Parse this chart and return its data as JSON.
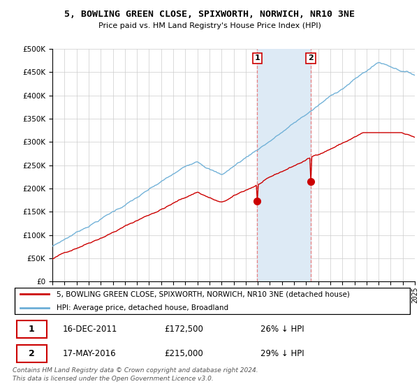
{
  "title1": "5, BOWLING GREEN CLOSE, SPIXWORTH, NORWICH, NR10 3NE",
  "title2": "Price paid vs. HM Land Registry's House Price Index (HPI)",
  "legend_line1": "5, BOWLING GREEN CLOSE, SPIXWORTH, NORWICH, NR10 3NE (detached house)",
  "legend_line2": "HPI: Average price, detached house, Broadland",
  "annotation1_date": "16-DEC-2011",
  "annotation1_price": "£172,500",
  "annotation1_hpi": "26% ↓ HPI",
  "annotation2_date": "17-MAY-2016",
  "annotation2_price": "£215,000",
  "annotation2_hpi": "29% ↓ HPI",
  "footer": "Contains HM Land Registry data © Crown copyright and database right 2024.\nThis data is licensed under the Open Government Licence v3.0.",
  "sale1_x": 2011.96,
  "sale1_y": 172500,
  "sale2_x": 2016.38,
  "sale2_y": 215000,
  "hpi_color": "#6baed6",
  "price_color": "#cc0000",
  "highlight_color": "#ddeaf5",
  "vline_color": "#e88080",
  "ylim": [
    0,
    500000
  ],
  "xlim_min": 1995,
  "xlim_max": 2025
}
